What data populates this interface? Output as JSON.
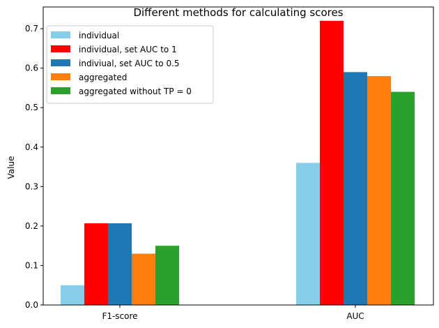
{
  "chart_data": {
    "type": "bar",
    "title": "Different methods for calculating scores",
    "xlabel": "",
    "ylabel": "Value",
    "categories": [
      "F1-score",
      "AUC"
    ],
    "ylim": [
      0,
      0.755
    ],
    "yticks": [
      0.0,
      0.1,
      0.2,
      0.3,
      0.4,
      0.5,
      0.6,
      0.7
    ],
    "grid": false,
    "legend_position": "upper-left",
    "series": [
      {
        "name": "individual",
        "color": "#87ceeb",
        "values": [
          0.05,
          0.36
        ]
      },
      {
        "name": "individual, set AUC to 1",
        "color": "#ff0000",
        "values": [
          0.207,
          0.72
        ]
      },
      {
        "name": "indiviual, set AUC to 0.5",
        "color": "#1f77b4",
        "values": [
          0.207,
          0.59
        ]
      },
      {
        "name": "aggregated",
        "color": "#ff7f0e",
        "values": [
          0.13,
          0.58
        ]
      },
      {
        "name": "aggregated without TP = 0",
        "color": "#2ca02c",
        "values": [
          0.15,
          0.54
        ]
      }
    ]
  }
}
